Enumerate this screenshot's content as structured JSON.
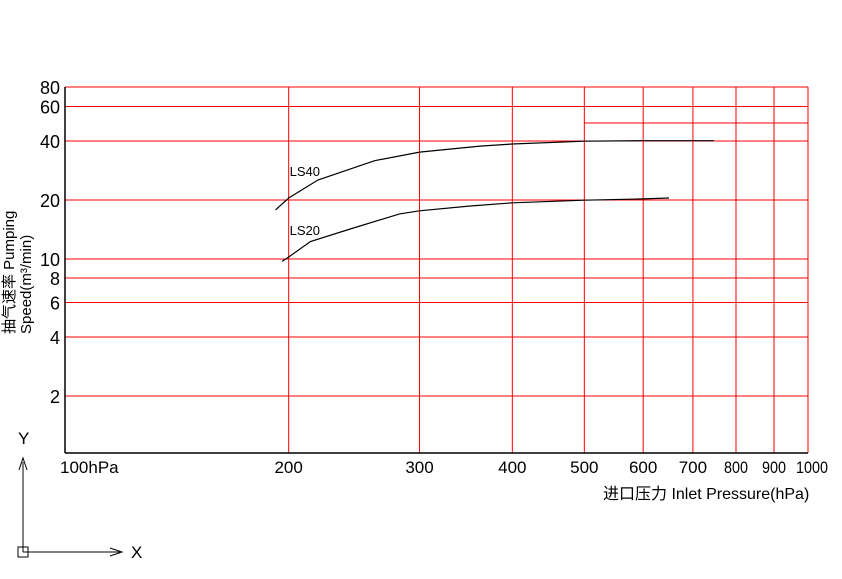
{
  "chart_data": {
    "type": "line",
    "xscale": "log",
    "yscale": "log",
    "xlim": [
      100,
      1000
    ],
    "ylim": [
      1,
      80
    ],
    "grid": true,
    "grid_color": "#ff0000",
    "axis_color": "#000000",
    "xlabel": "进口压力 Inlet Pressure(hPa)",
    "ylabel_line1": "抽气速率 Pumping",
    "ylabel_line2": "Speed(m³/min)",
    "x_ticks": [
      {
        "value": 100,
        "label": "100hPa"
      },
      {
        "value": 200,
        "label": "200"
      },
      {
        "value": 300,
        "label": "300"
      },
      {
        "value": 400,
        "label": "400"
      },
      {
        "value": 500,
        "label": "500"
      },
      {
        "value": 600,
        "label": "600"
      },
      {
        "value": 700,
        "label": "700"
      },
      {
        "value": 800,
        "label": "800"
      },
      {
        "value": 900,
        "label": "900"
      },
      {
        "value": 1000,
        "label": "1000"
      }
    ],
    "y_ticks": [
      {
        "value": 80,
        "label": "80"
      },
      {
        "value": 60,
        "label": "60"
      },
      {
        "value": 40,
        "label": "40"
      },
      {
        "value": 20,
        "label": "20"
      },
      {
        "value": 10,
        "label": "10"
      },
      {
        "value": 8,
        "label": "8"
      },
      {
        "value": 6,
        "label": "6"
      },
      {
        "value": 4,
        "label": "4"
      },
      {
        "value": 2,
        "label": "2"
      }
    ],
    "extra_gridline": {
      "y": 50,
      "x_from": 500,
      "x_to": 1000
    },
    "series": [
      {
        "name": "LS40",
        "color": "#000000",
        "x": [
          192,
          200,
          219,
          261,
          300,
          362,
          400,
          500,
          600,
          747
        ],
        "y": [
          17.4,
          20,
          24.7,
          31,
          34.3,
          36.8,
          37.7,
          39,
          39.2,
          39.2
        ]
      },
      {
        "name": "LS20",
        "color": "#000000",
        "x": [
          196,
          200,
          214,
          242,
          282,
          300,
          351,
          400,
          500,
          600,
          650
        ],
        "y": [
          9.5,
          10,
          12,
          13.9,
          16.6,
          17.2,
          18.2,
          18.9,
          19.5,
          19.8,
          20
        ]
      }
    ]
  },
  "ucs": {
    "x_label": "X",
    "y_label": "Y"
  }
}
